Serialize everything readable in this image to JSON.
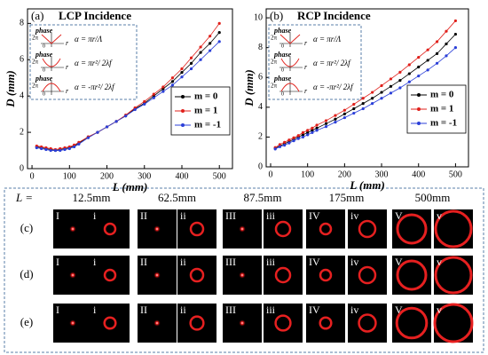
{
  "chart_data": [
    {
      "type": "line",
      "panel_label": "(a)",
      "title": "LCP Incidence",
      "x_label": "L (mm)",
      "y_label": "D (mm)",
      "x": [
        12.5,
        25,
        37.5,
        50,
        62.5,
        75,
        87.5,
        100,
        112.5,
        125,
        150,
        175,
        200,
        225,
        250,
        275,
        300,
        325,
        350,
        375,
        400,
        425,
        450,
        475,
        500
      ],
      "series": [
        {
          "name": "m = 0",
          "color": "#000000",
          "values": [
            1.2,
            1.15,
            1.1,
            1.05,
            1.0,
            1.05,
            1.1,
            1.15,
            1.25,
            1.4,
            1.75,
            2.0,
            2.3,
            2.6,
            2.9,
            3.3,
            3.6,
            4.0,
            4.4,
            4.8,
            5.3,
            5.8,
            6.4,
            6.9,
            7.5
          ]
        },
        {
          "name": "m = 1",
          "color": "#e0201b",
          "values": [
            1.25,
            1.2,
            1.15,
            1.1,
            1.05,
            1.1,
            1.15,
            1.2,
            1.3,
            1.45,
            1.75,
            2.0,
            2.3,
            2.6,
            2.95,
            3.35,
            3.7,
            4.1,
            4.5,
            5.0,
            5.5,
            6.1,
            6.7,
            7.3,
            8.0
          ]
        },
        {
          "name": "m = -1",
          "color": "#2b3fd8",
          "values": [
            1.15,
            1.1,
            1.05,
            1.0,
            1.0,
            1.0,
            1.05,
            1.1,
            1.2,
            1.35,
            1.7,
            2.0,
            2.3,
            2.6,
            2.9,
            3.25,
            3.55,
            3.9,
            4.25,
            4.6,
            5.05,
            5.5,
            6.0,
            6.5,
            7.0
          ]
        }
      ],
      "xlim": [
        -12,
        535
      ],
      "xticks": [
        0,
        100,
        200,
        300,
        400,
        500
      ],
      "ylim": [
        0,
        8.8
      ],
      "yticks": [
        0,
        2,
        4,
        6,
        8
      ],
      "legend": "lower right",
      "inset": {
        "labels": [
          "phase",
          "2π",
          "0",
          "r"
        ],
        "formulas": [
          "α = πr/Λ",
          "α = πr²/ 2λf",
          "α = -πr²/ 2λf"
        ]
      }
    },
    {
      "type": "line",
      "panel_label": "(b)",
      "title": "RCP Incidence",
      "x_label": "L (mm)",
      "y_label": "D (mm)",
      "x": [
        12.5,
        25,
        37.5,
        50,
        62.5,
        75,
        87.5,
        100,
        112.5,
        125,
        150,
        175,
        200,
        225,
        250,
        275,
        300,
        325,
        350,
        375,
        400,
        425,
        450,
        475,
        500
      ],
      "series": [
        {
          "name": "m = 0",
          "color": "#000000",
          "values": [
            1.25,
            1.4,
            1.55,
            1.7,
            1.85,
            2.0,
            2.15,
            2.3,
            2.45,
            2.6,
            2.9,
            3.2,
            3.55,
            3.9,
            4.25,
            4.6,
            5.0,
            5.4,
            5.8,
            6.25,
            6.7,
            7.15,
            7.6,
            8.25,
            8.9
          ]
        },
        {
          "name": "m = 1",
          "color": "#e0201b",
          "values": [
            1.3,
            1.5,
            1.65,
            1.8,
            1.95,
            2.1,
            2.3,
            2.45,
            2.6,
            2.8,
            3.1,
            3.45,
            3.8,
            4.2,
            4.6,
            5.0,
            5.45,
            5.9,
            6.35,
            6.85,
            7.35,
            7.85,
            8.4,
            9.1,
            9.8
          ]
        },
        {
          "name": "m = -1",
          "color": "#2b3fd8",
          "values": [
            1.2,
            1.35,
            1.45,
            1.6,
            1.75,
            1.9,
            2.0,
            2.15,
            2.3,
            2.45,
            2.7,
            3.0,
            3.3,
            3.6,
            3.9,
            4.25,
            4.6,
            4.95,
            5.3,
            5.7,
            6.1,
            6.5,
            6.95,
            7.45,
            8.0
          ]
        }
      ],
      "xlim": [
        -12,
        535
      ],
      "xticks": [
        0,
        100,
        200,
        300,
        400,
        500
      ],
      "ylim": [
        0,
        10.6
      ],
      "yticks": [
        0,
        2,
        4,
        6,
        8,
        10
      ],
      "legend": "lower right",
      "inset": {
        "labels": [
          "phase",
          "2π",
          "0",
          "r"
        ],
        "formulas": [
          "α = πr/Λ",
          "α = πr²/ 2λf",
          "α = -πr²/ 2λf"
        ]
      }
    }
  ],
  "image_grid": {
    "prefix": "L =",
    "distances": [
      "12.5mm",
      "62.5mm",
      "87.5mm",
      "175mm",
      "500mm"
    ],
    "rows": [
      "(c)",
      "(d)",
      "(e)"
    ],
    "image_labels": [
      "I",
      "i",
      "II",
      "ii",
      "III",
      "iii",
      "IV",
      "iv",
      "V",
      "v"
    ]
  }
}
